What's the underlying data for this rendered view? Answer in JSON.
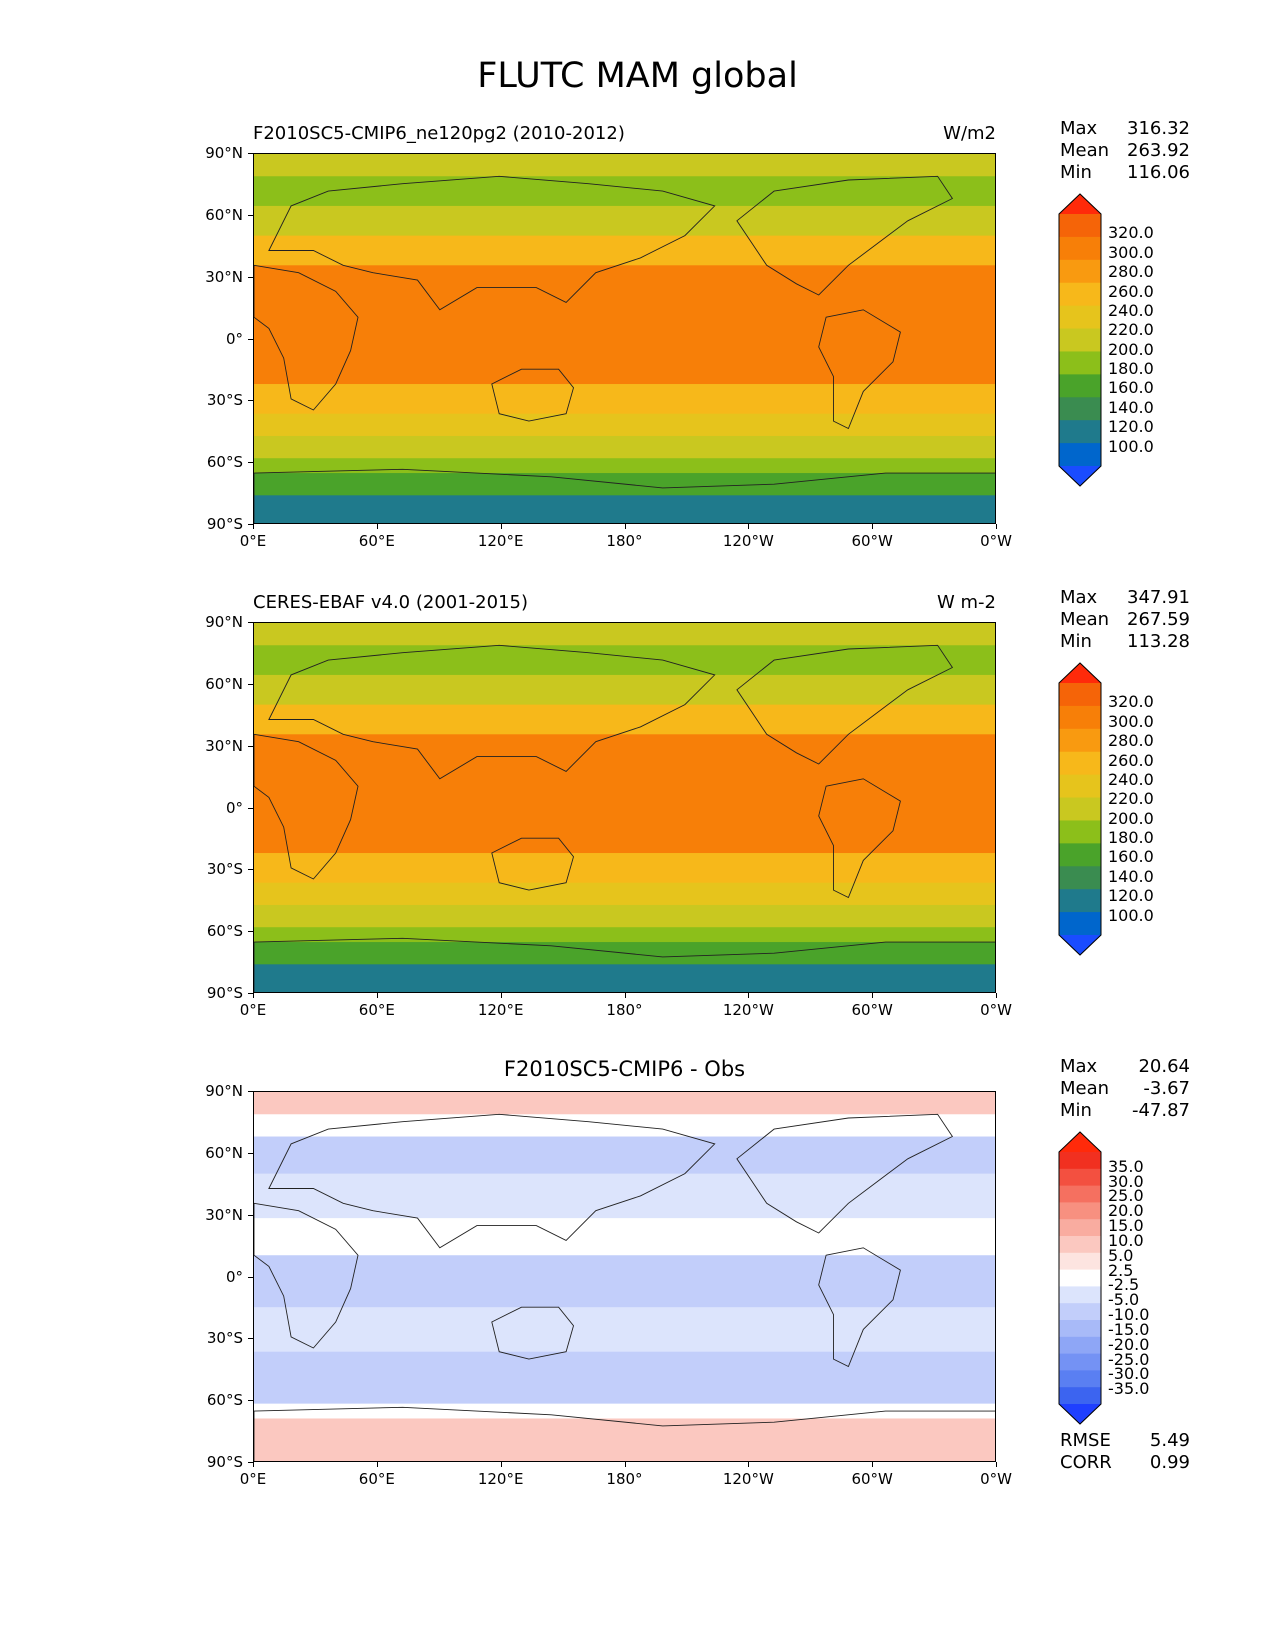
{
  "title": "FLUTC MAM global",
  "lat_ticks": [
    "90°N",
    "60°N",
    "30°N",
    "0°",
    "30°S",
    "60°S",
    "90°S"
  ],
  "lon_ticks": [
    "0°E",
    "60°E",
    "120°E",
    "180°",
    "120°W",
    "60°W",
    "0°W"
  ],
  "colors": {
    "abs_levels": [
      "#1a4cff",
      "#0066cc",
      "#1f7a8c",
      "#3a8c50",
      "#4aa32a",
      "#8cbf1a",
      "#c9c820",
      "#e6c41c",
      "#f7b81a",
      "#f99a10",
      "#f77f08",
      "#f56408",
      "#ff2a0a"
    ],
    "diff_levels": [
      "#1f3fff",
      "#3c64f0",
      "#5a7ff2",
      "#7492f4",
      "#8ea6f6",
      "#a8baf8",
      "#c2cefa",
      "#dce4fc",
      "#ffffff",
      "#fde4e0",
      "#fbc8c0",
      "#f9aca0",
      "#f79080",
      "#f57060",
      "#f35040",
      "#f13020",
      "#ff2a0a"
    ]
  },
  "panels": [
    {
      "label_left": "F2010SC5-CMIP6_ne120pg2 (2010-2012)",
      "label_right": "W/m2",
      "stats": {
        "max_label": "Max",
        "max": "316.32",
        "mean_label": "Mean",
        "mean": "263.92",
        "min_label": "Min",
        "min": "116.06"
      },
      "colorbar_labels": [
        "320.0",
        "300.0",
        "280.0",
        "260.0",
        "240.0",
        "220.0",
        "200.0",
        "180.0",
        "160.0",
        "140.0",
        "120.0",
        "100.0"
      ]
    },
    {
      "label_left": "CERES-EBAF v4.0 (2001-2015)",
      "label_right": "W m-2",
      "stats": {
        "max_label": "Max",
        "max": "347.91",
        "mean_label": "Mean",
        "mean": "267.59",
        "min_label": "Min",
        "min": "113.28"
      },
      "colorbar_labels": [
        "320.0",
        "300.0",
        "280.0",
        "260.0",
        "240.0",
        "220.0",
        "200.0",
        "180.0",
        "160.0",
        "140.0",
        "120.0",
        "100.0"
      ]
    },
    {
      "label_center": "F2010SC5-CMIP6 - Obs",
      "stats": {
        "max_label": "Max",
        "max": "20.64",
        "mean_label": "Mean",
        "mean": "-3.67",
        "min_label": "Min",
        "min": "-47.87"
      },
      "colorbar_labels": [
        "35.0",
        "30.0",
        "25.0",
        "20.0",
        "15.0",
        "10.0",
        "5.0",
        "2.5",
        "-2.5",
        "-5.0",
        "-10.0",
        "-15.0",
        "-20.0",
        "-25.0",
        "-30.0",
        "-35.0"
      ],
      "metrics": {
        "rmse_label": "RMSE",
        "rmse": "5.49",
        "corr_label": "CORR",
        "corr": "0.99"
      }
    }
  ]
}
